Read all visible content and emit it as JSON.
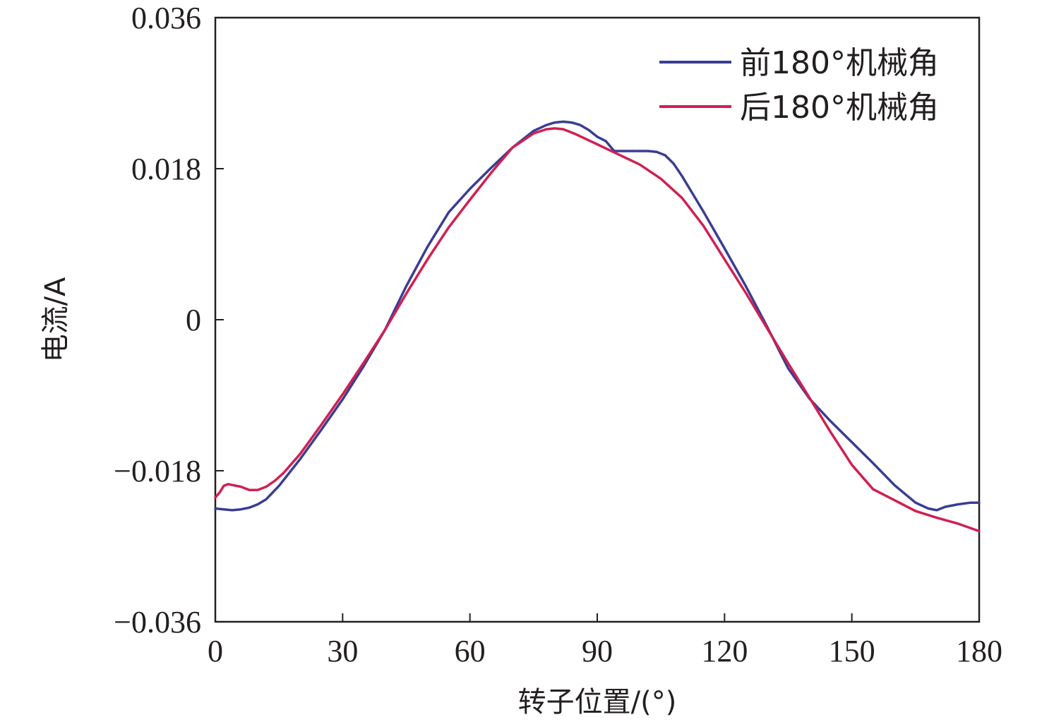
{
  "chart_data": {
    "type": "line",
    "xlabel": "转子位置/(°)",
    "ylabel": "电流/A",
    "xlim": [
      0,
      180
    ],
    "ylim": [
      -0.036,
      0.036
    ],
    "xticks": [
      0,
      30,
      60,
      90,
      120,
      150,
      180
    ],
    "yticks": [
      0.036,
      0.018,
      0,
      -0.018,
      -0.036
    ],
    "xtick_labels": [
      "0",
      "30",
      "60",
      "90",
      "120",
      "150",
      "180"
    ],
    "ytick_labels": [
      "0.036",
      "0.018",
      "0",
      "−0.018",
      "−0.036"
    ],
    "grid": false,
    "legend_position": "top-right",
    "series": [
      {
        "name": "前180°机械角",
        "color": "#3a3d92",
        "x": [
          0,
          2,
          4,
          6,
          8,
          10,
          12,
          15,
          20,
          25,
          30,
          35,
          40,
          45,
          50,
          55,
          60,
          65,
          70,
          75,
          78,
          80,
          82,
          84,
          86,
          88,
          90,
          92,
          94,
          96,
          98,
          100,
          102,
          104,
          106,
          108,
          110,
          115,
          120,
          125,
          130,
          135,
          140,
          145,
          150,
          155,
          160,
          165,
          168,
          170,
          172,
          175,
          178,
          180
        ],
        "y": [
          -0.0225,
          -0.0226,
          -0.0227,
          -0.0226,
          -0.0224,
          -0.022,
          -0.0214,
          -0.0198,
          -0.0166,
          -0.0131,
          -0.0095,
          -0.0055,
          -0.0012,
          0.004,
          0.0087,
          0.0128,
          0.0156,
          0.0181,
          0.0205,
          0.0225,
          0.0232,
          0.0235,
          0.0236,
          0.0235,
          0.0232,
          0.0226,
          0.0218,
          0.0213,
          0.0201,
          0.0201,
          0.0201,
          0.0201,
          0.0201,
          0.02,
          0.0196,
          0.0186,
          0.0171,
          0.0129,
          0.0085,
          0.004,
          -0.0008,
          -0.0058,
          -0.0094,
          -0.0121,
          -0.0146,
          -0.0171,
          -0.0197,
          -0.0218,
          -0.0225,
          -0.0227,
          -0.0223,
          -0.022,
          -0.0218,
          -0.0218
        ]
      },
      {
        "name": "后180°机械角",
        "color": "#d11f52",
        "x": [
          0,
          1,
          2,
          3,
          4,
          6,
          8,
          10,
          12,
          14,
          16,
          20,
          25,
          30,
          35,
          40,
          45,
          50,
          55,
          60,
          65,
          70,
          75,
          78,
          80,
          82,
          85,
          90,
          95,
          100,
          105,
          110,
          115,
          120,
          125,
          130,
          135,
          140,
          145,
          150,
          155,
          160,
          165,
          170,
          175,
          180
        ],
        "y": [
          -0.0212,
          -0.0206,
          -0.0198,
          -0.0196,
          -0.0197,
          -0.0199,
          -0.0203,
          -0.0203,
          -0.0199,
          -0.0192,
          -0.0183,
          -0.016,
          -0.0125,
          -0.0089,
          -0.0051,
          -0.0012,
          0.0031,
          0.0072,
          0.011,
          0.0143,
          0.0175,
          0.0205,
          0.0222,
          0.0227,
          0.0228,
          0.0227,
          0.0221,
          0.0209,
          0.0197,
          0.0185,
          0.0168,
          0.0145,
          0.0112,
          0.0072,
          0.0032,
          -0.001,
          -0.0052,
          -0.0093,
          -0.0134,
          -0.0173,
          -0.0202,
          -0.0215,
          -0.0228,
          -0.0236,
          -0.0243,
          -0.0252
        ]
      }
    ]
  }
}
